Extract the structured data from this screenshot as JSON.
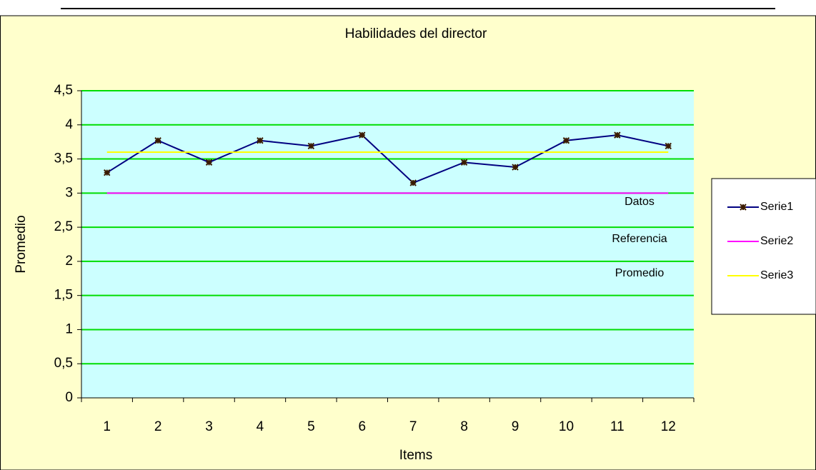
{
  "chart_data": {
    "type": "line",
    "title": "Habilidades del director",
    "x_label": "Items",
    "y_label": "Promedio",
    "categories": [
      "1",
      "2",
      "3",
      "4",
      "5",
      "6",
      "7",
      "8",
      "9",
      "10",
      "11",
      "12"
    ],
    "series": [
      {
        "name": "Serie1",
        "color": "#000080",
        "values": [
          3.3,
          3.77,
          3.45,
          3.77,
          3.69,
          3.85,
          3.15,
          3.45,
          3.38,
          3.77,
          3.85,
          3.69
        ]
      },
      {
        "name": "Serie2",
        "color": "#ff00ff",
        "values": [
          3,
          3,
          3,
          3,
          3,
          3,
          3,
          3,
          3,
          3,
          3,
          3
        ]
      },
      {
        "name": "Serie3",
        "color": "#ffff00",
        "values": [
          3.6,
          3.6,
          3.6,
          3.6,
          3.6,
          3.6,
          3.6,
          3.6,
          3.6,
          3.6,
          3.6,
          3.6
        ]
      }
    ],
    "annotations": [
      "Datos",
      "Referencia",
      "Promedio"
    ],
    "ylim": [
      0,
      4.5
    ],
    "yticks": [
      0,
      {
        "value": 0.5,
        "label": "0,5"
      },
      1,
      {
        "value": 1.5,
        "label": "1,5"
      },
      2,
      {
        "value": 2.5,
        "label": "2,5"
      },
      3,
      {
        "value": 3.5,
        "label": "3,5"
      },
      4,
      {
        "value": 4.5,
        "label": "4,5"
      }
    ],
    "grid": true,
    "grid_color": "#00dd00",
    "plot_background": "#ccffff",
    "background": "#ffffcc",
    "legend": "right"
  }
}
